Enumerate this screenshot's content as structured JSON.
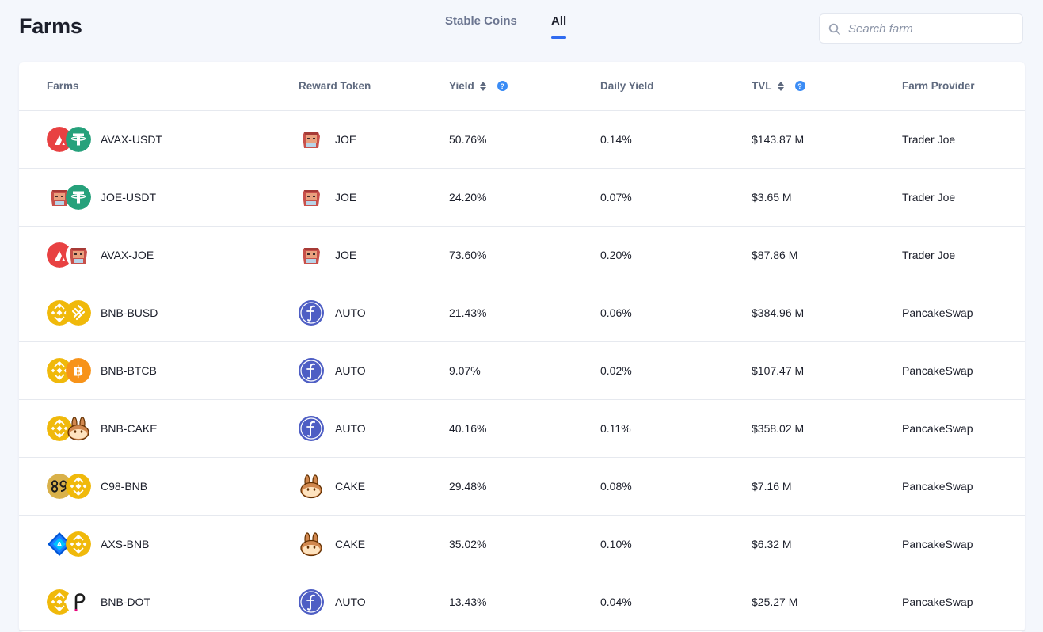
{
  "page": {
    "title": "Farms"
  },
  "tabs": [
    {
      "label": "Stable Coins",
      "active": false
    },
    {
      "label": "All",
      "active": true
    }
  ],
  "search": {
    "placeholder": "Search farm",
    "value": ""
  },
  "columns": {
    "farms": "Farms",
    "reward_token": "Reward Token",
    "yield": "Yield",
    "daily_yield": "Daily Yield",
    "tvl": "TVL",
    "farm_provider": "Farm Provider"
  },
  "colors": {
    "accent": "#2f6bf0",
    "help": "#3b8cf5",
    "background": "#f4f7fc"
  },
  "rows": [
    {
      "pair": "AVAX-USDT",
      "icons": [
        "avax-icon",
        "usdt-icon"
      ],
      "reward": "JOE",
      "reward_icon": "joe-icon",
      "yield": "50.76%",
      "daily": "0.14%",
      "tvl": "$143.87 M",
      "provider": "Trader Joe"
    },
    {
      "pair": "JOE-USDT",
      "icons": [
        "joe-icon",
        "usdt-icon"
      ],
      "reward": "JOE",
      "reward_icon": "joe-icon",
      "yield": "24.20%",
      "daily": "0.07%",
      "tvl": "$3.65 M",
      "provider": "Trader Joe"
    },
    {
      "pair": "AVAX-JOE",
      "icons": [
        "avax-icon",
        "joe-icon"
      ],
      "reward": "JOE",
      "reward_icon": "joe-icon",
      "yield": "73.60%",
      "daily": "0.20%",
      "tvl": "$87.86 M",
      "provider": "Trader Joe"
    },
    {
      "pair": "BNB-BUSD",
      "icons": [
        "bnb-icon",
        "busd-icon"
      ],
      "reward": "AUTO",
      "reward_icon": "auto-icon",
      "yield": "21.43%",
      "daily": "0.06%",
      "tvl": "$384.96 M",
      "provider": "PancakeSwap"
    },
    {
      "pair": "BNB-BTCB",
      "icons": [
        "bnb-icon",
        "btcb-icon"
      ],
      "reward": "AUTO",
      "reward_icon": "auto-icon",
      "yield": "9.07%",
      "daily": "0.02%",
      "tvl": "$107.47 M",
      "provider": "PancakeSwap"
    },
    {
      "pair": "BNB-CAKE",
      "icons": [
        "bnb-icon",
        "cake-icon"
      ],
      "reward": "AUTO",
      "reward_icon": "auto-icon",
      "yield": "40.16%",
      "daily": "0.11%",
      "tvl": "$358.02 M",
      "provider": "PancakeSwap"
    },
    {
      "pair": "C98-BNB",
      "icons": [
        "c98-icon",
        "bnb-icon"
      ],
      "reward": "CAKE",
      "reward_icon": "cake-icon",
      "yield": "29.48%",
      "daily": "0.08%",
      "tvl": "$7.16 M",
      "provider": "PancakeSwap"
    },
    {
      "pair": "AXS-BNB",
      "icons": [
        "axs-icon",
        "bnb-icon"
      ],
      "reward": "CAKE",
      "reward_icon": "cake-icon",
      "yield": "35.02%",
      "daily": "0.10%",
      "tvl": "$6.32 M",
      "provider": "PancakeSwap"
    },
    {
      "pair": "BNB-DOT",
      "icons": [
        "bnb-icon",
        "dot-icon"
      ],
      "reward": "AUTO",
      "reward_icon": "auto-icon",
      "yield": "13.43%",
      "daily": "0.04%",
      "tvl": "$25.27 M",
      "provider": "PancakeSwap"
    }
  ]
}
